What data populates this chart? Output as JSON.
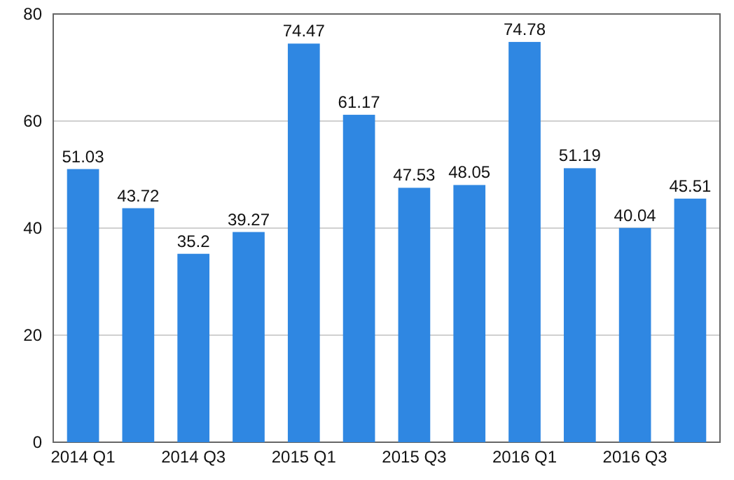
{
  "chart_data": {
    "type": "bar",
    "categories": [
      "2014 Q1",
      null,
      "2014 Q3",
      null,
      "2015 Q1",
      null,
      "2015 Q3",
      null,
      "2016 Q1",
      null,
      "2016 Q3",
      null
    ],
    "values": [
      51.03,
      43.72,
      35.2,
      39.27,
      74.47,
      61.17,
      47.53,
      48.05,
      74.78,
      51.19,
      40.04,
      45.51
    ],
    "color": "#2f87e2",
    "ylim": [
      0,
      80
    ],
    "yticks": [
      0,
      20,
      40,
      60,
      80
    ],
    "grid": "y",
    "data_labels": true
  }
}
